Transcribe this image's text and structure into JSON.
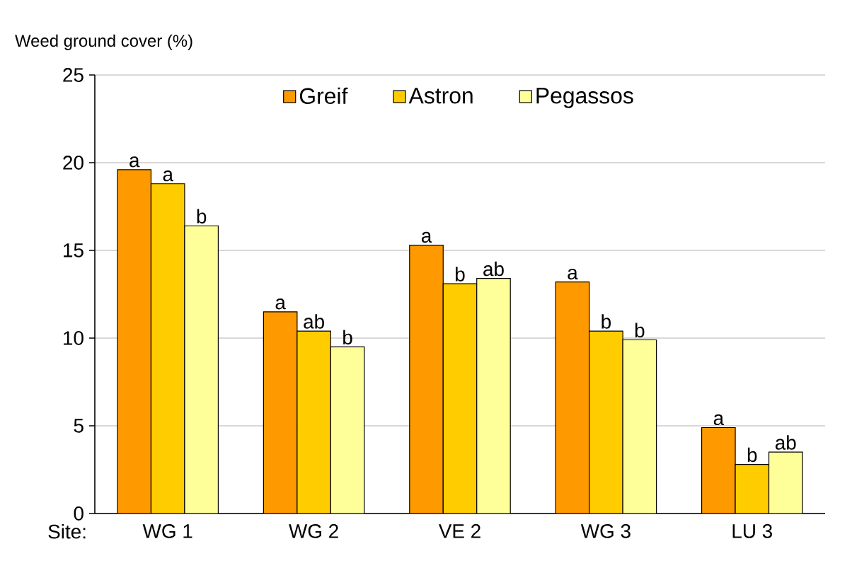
{
  "chart_data": {
    "type": "bar",
    "ylabel": "Weed ground cover (%)",
    "xlabel": "Site:",
    "categories": [
      "WG 1",
      "WG 2",
      "VE 2",
      "WG 3",
      "LU 3"
    ],
    "series": [
      {
        "name": "Greif",
        "color": "#ff9900",
        "values": [
          19.6,
          11.5,
          15.3,
          13.2,
          4.9
        ],
        "value_labels": [
          "a",
          "a",
          "a",
          "a",
          "a"
        ]
      },
      {
        "name": "Astron",
        "color": "#ffcc00",
        "values": [
          18.8,
          10.4,
          13.1,
          10.4,
          2.8
        ],
        "value_labels": [
          "a",
          "ab",
          "b",
          "b",
          "b"
        ]
      },
      {
        "name": "Pegassos",
        "color": "#ffff99",
        "values": [
          16.4,
          9.5,
          13.4,
          9.9,
          3.5
        ],
        "value_labels": [
          "b",
          "b",
          "ab",
          "b",
          "ab"
        ]
      }
    ],
    "ylim": [
      0,
      25
    ],
    "yticks": [
      0,
      5,
      10,
      15,
      20,
      25
    ],
    "grid": "y",
    "legend": "top"
  }
}
